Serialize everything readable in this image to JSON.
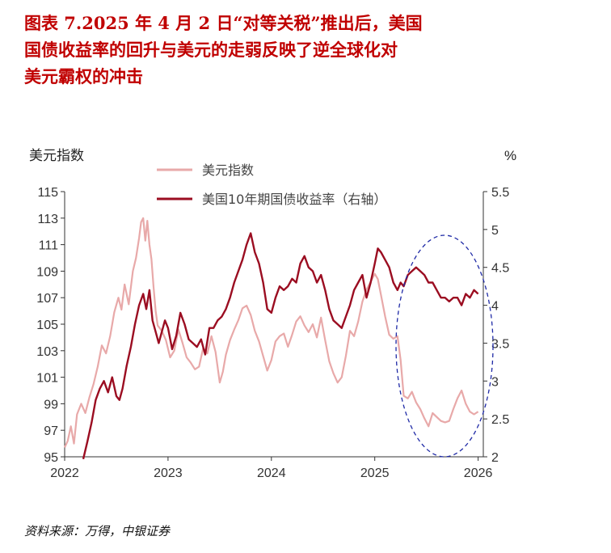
{
  "title_lines": [
    "图表 7.2025 年 4 月 2 日“对等关税”推出后，美国",
    "国债收益率的回升与美元的走弱反映了逆全球化对",
    "美元霸权的冲击"
  ],
  "source": "资料来源：万得，中银证券",
  "colors": {
    "title": "#c00000",
    "usd": "#e8a9a9",
    "yield": "#9b0d21",
    "ellipse": "#1f2aa6"
  },
  "chart_data": {
    "type": "line",
    "left_axis_title": "美元指数",
    "right_axis_title": "%",
    "x_ticks": [
      "2022",
      "2023",
      "2024",
      "2025",
      "2026"
    ],
    "y_left_ticks": [
      "115",
      "113",
      "111",
      "109",
      "107",
      "105",
      "103",
      "101",
      "99",
      "97",
      "95"
    ],
    "y_right_ticks": [
      "5.5",
      "5",
      "4.5",
      "4",
      "3.5",
      "3",
      "2.5",
      "2"
    ],
    "ylim_left": [
      95,
      115
    ],
    "ylim_right": [
      2,
      5.5
    ],
    "xlim": [
      2022.0,
      2026.05
    ],
    "series": [
      {
        "name": "美元指数",
        "axis": "left",
        "x": [
          2022.0,
          2022.03,
          2022.06,
          2022.09,
          2022.12,
          2022.16,
          2022.2,
          2022.24,
          2022.28,
          2022.32,
          2022.36,
          2022.4,
          2022.44,
          2022.48,
          2022.52,
          2022.55,
          2022.58,
          2022.62,
          2022.66,
          2022.69,
          2022.72,
          2022.74,
          2022.76,
          2022.78,
          2022.8,
          2022.82,
          2022.84,
          2022.86,
          2022.88,
          2022.9,
          2022.94,
          2022.98,
          2023.02,
          2023.06,
          2023.1,
          2023.14,
          2023.18,
          2023.22,
          2023.26,
          2023.3,
          2023.34,
          2023.38,
          2023.42,
          2023.46,
          2023.5,
          2023.53,
          2023.56,
          2023.6,
          2023.64,
          2023.68,
          2023.72,
          2023.76,
          2023.8,
          2023.84,
          2023.88,
          2023.92,
          2023.96,
          2024.0,
          2024.04,
          2024.08,
          2024.12,
          2024.16,
          2024.2,
          2024.24,
          2024.28,
          2024.32,
          2024.36,
          2024.4,
          2024.44,
          2024.48,
          2024.52,
          2024.56,
          2024.6,
          2024.64,
          2024.68,
          2024.72,
          2024.76,
          2024.8,
          2024.84,
          2024.88,
          2024.92,
          2024.96,
          2025.0,
          2025.03,
          2025.06,
          2025.1,
          2025.14,
          2025.18,
          2025.22,
          2025.25,
          2025.28,
          2025.32,
          2025.36,
          2025.4,
          2025.44,
          2025.48,
          2025.52,
          2025.56,
          2025.6,
          2025.64,
          2025.68,
          2025.72,
          2025.76,
          2025.8,
          2025.84,
          2025.88,
          2025.92,
          2025.96,
          2026.0
        ],
        "values": [
          95.7,
          96.2,
          97.3,
          96.0,
          98.2,
          99.0,
          98.3,
          99.5,
          100.5,
          101.8,
          103.4,
          102.8,
          104.1,
          105.9,
          107.0,
          106.1,
          108.0,
          106.5,
          109.0,
          110.0,
          111.5,
          112.7,
          113.0,
          111.3,
          112.8,
          111.0,
          109.9,
          107.8,
          106.0,
          104.9,
          104.5,
          103.8,
          102.5,
          103.0,
          104.6,
          103.6,
          102.5,
          102.1,
          101.6,
          101.8,
          103.2,
          102.8,
          104.1,
          102.9,
          100.6,
          101.4,
          102.7,
          103.8,
          104.6,
          105.3,
          106.2,
          106.4,
          105.7,
          104.5,
          103.7,
          102.6,
          101.5,
          102.3,
          103.7,
          104.1,
          104.3,
          103.3,
          104.2,
          105.2,
          105.6,
          104.9,
          104.4,
          105.0,
          104.0,
          105.5,
          103.8,
          102.2,
          101.3,
          100.6,
          101.0,
          102.6,
          104.5,
          104.1,
          105.2,
          106.7,
          107.6,
          108.2,
          108.8,
          108.4,
          107.2,
          105.6,
          104.2,
          103.9,
          104.1,
          102.3,
          99.6,
          99.4,
          99.9,
          99.1,
          98.6,
          97.9,
          97.3,
          98.3,
          98.0,
          97.7,
          97.6,
          97.7,
          98.6,
          99.4,
          100.0,
          99.0,
          98.4,
          98.2,
          98.4
        ]
      },
      {
        "name": "美国10年期国债收益率（右轴）",
        "axis": "right",
        "x": [
          2022.18,
          2022.22,
          2022.26,
          2022.3,
          2022.34,
          2022.38,
          2022.42,
          2022.46,
          2022.5,
          2022.53,
          2022.56,
          2022.6,
          2022.64,
          2022.68,
          2022.72,
          2022.76,
          2022.79,
          2022.82,
          2022.85,
          2022.88,
          2022.91,
          2022.94,
          2022.97,
          2023.0,
          2023.04,
          2023.08,
          2023.12,
          2023.16,
          2023.2,
          2023.24,
          2023.28,
          2023.32,
          2023.36,
          2023.4,
          2023.44,
          2023.48,
          2023.52,
          2023.56,
          2023.6,
          2023.64,
          2023.68,
          2023.72,
          2023.76,
          2023.8,
          2023.84,
          2023.88,
          2023.92,
          2023.96,
          2024.0,
          2024.04,
          2024.08,
          2024.12,
          2024.16,
          2024.2,
          2024.24,
          2024.28,
          2024.32,
          2024.36,
          2024.4,
          2024.44,
          2024.48,
          2024.52,
          2024.56,
          2024.6,
          2024.64,
          2024.68,
          2024.72,
          2024.76,
          2024.8,
          2024.84,
          2024.88,
          2024.92,
          2024.96,
          2025.0,
          2025.03,
          2025.06,
          2025.1,
          2025.14,
          2025.18,
          2025.22,
          2025.25,
          2025.28,
          2025.32,
          2025.36,
          2025.4,
          2025.44,
          2025.48,
          2025.52,
          2025.56,
          2025.6,
          2025.64,
          2025.68,
          2025.72,
          2025.76,
          2025.8,
          2025.84,
          2025.88,
          2025.92,
          2025.96,
          2026.0
        ],
        "values": [
          1.97,
          2.2,
          2.45,
          2.75,
          2.9,
          3.0,
          2.85,
          3.05,
          2.8,
          2.75,
          2.9,
          3.2,
          3.45,
          3.75,
          4.0,
          4.15,
          3.95,
          4.2,
          3.8,
          3.65,
          3.5,
          3.65,
          3.8,
          3.7,
          3.42,
          3.6,
          3.9,
          3.75,
          3.55,
          3.5,
          3.45,
          3.55,
          3.35,
          3.7,
          3.7,
          3.8,
          3.85,
          3.95,
          4.1,
          4.3,
          4.45,
          4.6,
          4.8,
          4.95,
          4.7,
          4.55,
          4.3,
          3.95,
          3.9,
          4.1,
          4.25,
          4.2,
          4.25,
          4.35,
          4.3,
          4.55,
          4.65,
          4.5,
          4.45,
          4.3,
          4.4,
          4.2,
          3.95,
          3.8,
          3.75,
          3.7,
          3.85,
          4.0,
          4.2,
          4.3,
          4.4,
          4.1,
          4.3,
          4.55,
          4.75,
          4.7,
          4.6,
          4.5,
          4.3,
          4.2,
          4.3,
          4.25,
          4.4,
          4.45,
          4.5,
          4.45,
          4.4,
          4.3,
          4.3,
          4.2,
          4.1,
          4.1,
          4.05,
          4.1,
          4.1,
          4.0,
          4.15,
          4.1,
          4.2,
          4.15
        ]
      }
    ],
    "annotation": "dashed ellipse highlighting post-April 2025 period"
  }
}
